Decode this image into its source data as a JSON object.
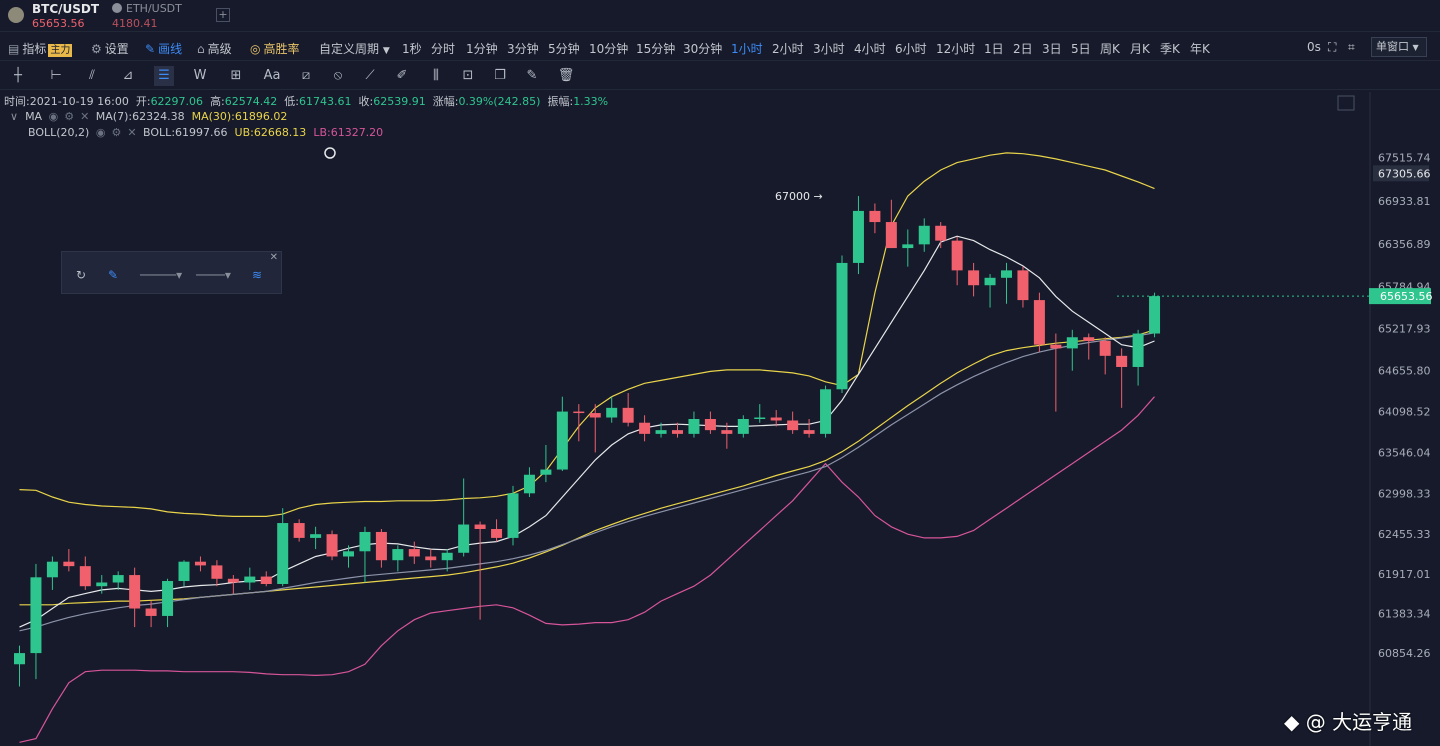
{
  "tabs": [
    {
      "symbol": "BTC/USDT",
      "price": "65653.56"
    },
    {
      "symbol": "ETH/USDT",
      "price": "4180.41"
    }
  ],
  "toolbar": {
    "indicator": "指标",
    "indicator_badge": "主力",
    "settings": "设置",
    "draw": "画线",
    "advanced": "高级",
    "high_win": "高胜率",
    "custom_period": "自定义周期",
    "periods": [
      "1秒",
      "分时",
      "1分钟",
      "3分钟",
      "5分钟",
      "10分钟",
      "15分钟",
      "30分钟",
      "1小时",
      "2小时",
      "3小时",
      "4小时",
      "6小时",
      "12小时",
      "1日",
      "2日",
      "3日",
      "5日",
      "周K",
      "月K",
      "季K",
      "年K"
    ],
    "active_period": "1小时",
    "timer": "0s",
    "window_mode": "单窗口"
  },
  "info": {
    "time_label": "时间:",
    "time": "2021-10-19 16:00",
    "open_label": "开:",
    "open": "62297.06",
    "high_label": "高:",
    "high": "62574.42",
    "low_label": "低:",
    "low": "61743.61",
    "close_label": "收:",
    "close": "62539.91",
    "change_label": "涨幅:",
    "change": "0.39%(242.85)",
    "amp_label": "振幅:",
    "amp": "1.33%"
  },
  "indicators": {
    "ma_name": "MA",
    "ma7": "MA(7):62324.38",
    "ma30": "MA(30):61896.02",
    "boll_name": "BOLL(20,2)",
    "boll": "BOLL:61997.66",
    "ub": "UB:62668.13",
    "lb": "LB:61327.20"
  },
  "colors": {
    "up": "#2fc58e",
    "down": "#f0616d",
    "ma7": "#e6e8ea",
    "ma30": "#8d93a8",
    "ub": "#e9d44a",
    "mid": "#e9d44a",
    "lb": "#d7559a",
    "bg": "#161a2b"
  },
  "watermark": "@ 大运亨通",
  "chart_data": {
    "type": "candlestick",
    "y_ticks": [
      "67515.74",
      "66933.81",
      "66356.89",
      "65784.94",
      "65217.93",
      "64655.80",
      "64098.52",
      "63546.04",
      "62998.33",
      "62455.33",
      "61917.01",
      "61383.34",
      "60854.26"
    ],
    "last_price": "65653.56",
    "marker_price": "67305.66",
    "annotation": "67000",
    "candles": [
      {
        "o": 60700,
        "h": 60950,
        "l": 60400,
        "c": 60850
      },
      {
        "o": 60850,
        "h": 62050,
        "l": 60500,
        "c": 61870
      },
      {
        "o": 61870,
        "h": 62150,
        "l": 61700,
        "c": 62080
      },
      {
        "o": 62080,
        "h": 62250,
        "l": 61950,
        "c": 62020
      },
      {
        "o": 62020,
        "h": 62150,
        "l": 61700,
        "c": 61750
      },
      {
        "o": 61750,
        "h": 61900,
        "l": 61650,
        "c": 61800
      },
      {
        "o": 61800,
        "h": 61950,
        "l": 61700,
        "c": 61900
      },
      {
        "o": 61900,
        "h": 62000,
        "l": 61200,
        "c": 61450
      },
      {
        "o": 61450,
        "h": 61550,
        "l": 61200,
        "c": 61350
      },
      {
        "o": 61350,
        "h": 61850,
        "l": 61200,
        "c": 61820
      },
      {
        "o": 61820,
        "h": 62100,
        "l": 61750,
        "c": 62080
      },
      {
        "o": 62080,
        "h": 62150,
        "l": 61950,
        "c": 62030
      },
      {
        "o": 62030,
        "h": 62100,
        "l": 61750,
        "c": 61850
      },
      {
        "o": 61850,
        "h": 61900,
        "l": 61650,
        "c": 61800
      },
      {
        "o": 61800,
        "h": 62000,
        "l": 61700,
        "c": 61880
      },
      {
        "o": 61880,
        "h": 61950,
        "l": 61750,
        "c": 61780
      },
      {
        "o": 61780,
        "h": 62800,
        "l": 61750,
        "c": 62600
      },
      {
        "o": 62600,
        "h": 62650,
        "l": 62350,
        "c": 62400
      },
      {
        "o": 62400,
        "h": 62550,
        "l": 62250,
        "c": 62450
      },
      {
        "o": 62450,
        "h": 62500,
        "l": 62100,
        "c": 62150
      },
      {
        "o": 62150,
        "h": 62300,
        "l": 62000,
        "c": 62220
      },
      {
        "o": 62220,
        "h": 62550,
        "l": 61800,
        "c": 62480
      },
      {
        "o": 62480,
        "h": 62520,
        "l": 62000,
        "c": 62100
      },
      {
        "o": 62100,
        "h": 62300,
        "l": 61950,
        "c": 62250
      },
      {
        "o": 62250,
        "h": 62350,
        "l": 62050,
        "c": 62150
      },
      {
        "o": 62150,
        "h": 62250,
        "l": 62000,
        "c": 62100
      },
      {
        "o": 62100,
        "h": 62250,
        "l": 61950,
        "c": 62200
      },
      {
        "o": 62200,
        "h": 63200,
        "l": 62150,
        "c": 62580
      },
      {
        "o": 62580,
        "h": 62620,
        "l": 61300,
        "c": 62520
      },
      {
        "o": 62520,
        "h": 62650,
        "l": 62350,
        "c": 62400
      },
      {
        "o": 62400,
        "h": 63100,
        "l": 62300,
        "c": 63000
      },
      {
        "o": 63000,
        "h": 63350,
        "l": 62950,
        "c": 63250
      },
      {
        "o": 63250,
        "h": 63650,
        "l": 63150,
        "c": 63320
      },
      {
        "o": 63320,
        "h": 64300,
        "l": 63300,
        "c": 64100
      },
      {
        "o": 64100,
        "h": 64200,
        "l": 63700,
        "c": 64080
      },
      {
        "o": 64080,
        "h": 64200,
        "l": 63550,
        "c": 64020
      },
      {
        "o": 64020,
        "h": 64300,
        "l": 63950,
        "c": 64150
      },
      {
        "o": 64150,
        "h": 64350,
        "l": 63900,
        "c": 63950
      },
      {
        "o": 63950,
        "h": 64050,
        "l": 63700,
        "c": 63800
      },
      {
        "o": 63800,
        "h": 63950,
        "l": 63750,
        "c": 63850
      },
      {
        "o": 63850,
        "h": 63950,
        "l": 63750,
        "c": 63800
      },
      {
        "o": 63800,
        "h": 64100,
        "l": 63750,
        "c": 64000
      },
      {
        "o": 64000,
        "h": 64100,
        "l": 63800,
        "c": 63850
      },
      {
        "o": 63850,
        "h": 63950,
        "l": 63600,
        "c": 63800
      },
      {
        "o": 63800,
        "h": 64050,
        "l": 63750,
        "c": 64000
      },
      {
        "o": 64000,
        "h": 64200,
        "l": 63950,
        "c": 64020
      },
      {
        "o": 64020,
        "h": 64120,
        "l": 63900,
        "c": 63980
      },
      {
        "o": 63980,
        "h": 64100,
        "l": 63800,
        "c": 63850
      },
      {
        "o": 63850,
        "h": 64000,
        "l": 63750,
        "c": 63800
      },
      {
        "o": 63800,
        "h": 64450,
        "l": 63750,
        "c": 64400
      },
      {
        "o": 64400,
        "h": 66200,
        "l": 64350,
        "c": 66100
      },
      {
        "o": 66100,
        "h": 67000,
        "l": 65950,
        "c": 66800
      },
      {
        "o": 66800,
        "h": 66900,
        "l": 66500,
        "c": 66650
      },
      {
        "o": 66650,
        "h": 66950,
        "l": 66300,
        "c": 66300
      },
      {
        "o": 66300,
        "h": 66550,
        "l": 66050,
        "c": 66350
      },
      {
        "o": 66350,
        "h": 66700,
        "l": 66250,
        "c": 66600
      },
      {
        "o": 66600,
        "h": 66650,
        "l": 66300,
        "c": 66400
      },
      {
        "o": 66400,
        "h": 66450,
        "l": 65800,
        "c": 66000
      },
      {
        "o": 66000,
        "h": 66100,
        "l": 65650,
        "c": 65800
      },
      {
        "o": 65800,
        "h": 65950,
        "l": 65500,
        "c": 65900
      },
      {
        "o": 65900,
        "h": 66100,
        "l": 65550,
        "c": 66000
      },
      {
        "o": 66000,
        "h": 66050,
        "l": 65500,
        "c": 65600
      },
      {
        "o": 65600,
        "h": 65700,
        "l": 64900,
        "c": 65000
      },
      {
        "o": 65000,
        "h": 65150,
        "l": 64100,
        "c": 64950
      },
      {
        "o": 64950,
        "h": 65200,
        "l": 64650,
        "c": 65100
      },
      {
        "o": 65100,
        "h": 65150,
        "l": 64800,
        "c": 65050
      },
      {
        "o": 65050,
        "h": 65100,
        "l": 64600,
        "c": 64850
      },
      {
        "o": 64850,
        "h": 64950,
        "l": 64150,
        "c": 64700
      },
      {
        "o": 64700,
        "h": 65200,
        "l": 64450,
        "c": 65150
      },
      {
        "o": 65150,
        "h": 65700,
        "l": 65100,
        "c": 65653.56
      }
    ],
    "ma7": [
      61200,
      61300,
      61450,
      61600,
      61650,
      61700,
      61720,
      61700,
      61680,
      61700,
      61740,
      61760,
      61770,
      61800,
      61820,
      61830,
      61950,
      62050,
      62150,
      62200,
      62260,
      62310,
      62330,
      62320,
      62280,
      62250,
      62240,
      62300,
      62330,
      62350,
      62420,
      62550,
      62700,
      62950,
      63200,
      63450,
      63650,
      63800,
      63880,
      63920,
      63930,
      63920,
      63910,
      63900,
      63900,
      63910,
      63920,
      63930,
      63930,
      63980,
      64250,
      64600,
      64950,
      65300,
      65650,
      66000,
      66380,
      66460,
      66400,
      66280,
      66180,
      66060,
      65900,
      65650,
      65450,
      65300,
      65150,
      65000,
      64960,
      65050
    ],
    "ma30": [
      61150,
      61200,
      61270,
      61330,
      61380,
      61420,
      61460,
      61490,
      61510,
      61540,
      61570,
      61600,
      61620,
      61640,
      61660,
      61680,
      61720,
      61760,
      61800,
      61830,
      61860,
      61890,
      61910,
      61930,
      61950,
      61970,
      61990,
      62020,
      62050,
      62080,
      62120,
      62170,
      62230,
      62310,
      62390,
      62470,
      62550,
      62620,
      62690,
      62750,
      62810,
      62870,
      62930,
      62990,
      63050,
      63110,
      63170,
      63230,
      63290,
      63360,
      63480,
      63620,
      63770,
      63920,
      64060,
      64200,
      64340,
      64460,
      64570,
      64670,
      64760,
      64840,
      64900,
      64950,
      64990,
      65030,
      65060,
      65090,
      65120,
      65160
    ],
    "boll_ub": [
      63050,
      63040,
      62950,
      62880,
      62850,
      62830,
      62820,
      62810,
      62790,
      62750,
      62730,
      62720,
      62700,
      62690,
      62690,
      62690,
      62720,
      62800,
      62850,
      62870,
      62880,
      62890,
      62890,
      62900,
      62900,
      62900,
      62910,
      62930,
      62940,
      62960,
      63000,
      63100,
      63300,
      63600,
      63900,
      64150,
      64300,
      64400,
      64480,
      64520,
      64560,
      64600,
      64640,
      64660,
      64660,
      64660,
      64640,
      64620,
      64580,
      64500,
      64450,
      64600,
      65700,
      66600,
      67000,
      67200,
      67350,
      67450,
      67500,
      67550,
      67580,
      67570,
      67540,
      67500,
      67450,
      67400,
      67350,
      67270,
      67190,
      67100
    ],
    "boll_mid": [
      61500,
      61500,
      61500,
      61520,
      61530,
      61540,
      61550,
      61550,
      61560,
      61570,
      61580,
      61600,
      61620,
      61640,
      61660,
      61680,
      61700,
      61720,
      61740,
      61760,
      61780,
      61800,
      61820,
      61840,
      61860,
      61880,
      61900,
      61930,
      61970,
      62010,
      62060,
      62130,
      62210,
      62300,
      62400,
      62500,
      62580,
      62660,
      62730,
      62800,
      62860,
      62920,
      62980,
      63040,
      63100,
      63170,
      63240,
      63300,
      63360,
      63440,
      63560,
      63700,
      63860,
      64020,
      64180,
      64330,
      64480,
      64620,
      64740,
      64850,
      64920,
      64960,
      64990,
      65020,
      65040,
      65060,
      65080,
      65100,
      65130,
      65200
    ],
    "boll_lb": [
      59650,
      59700,
      60100,
      60450,
      60600,
      60620,
      60620,
      60620,
      60610,
      60610,
      60600,
      60600,
      60600,
      60600,
      60590,
      60570,
      60560,
      60560,
      60550,
      60560,
      60600,
      60700,
      60950,
      61150,
      61300,
      61390,
      61420,
      61450,
      61480,
      61500,
      61460,
      61360,
      61250,
      61230,
      61240,
      61260,
      61260,
      61300,
      61400,
      61550,
      61650,
      61750,
      61900,
      62100,
      62300,
      62500,
      62700,
      62900,
      63150,
      63400,
      63150,
      62950,
      62700,
      62550,
      62450,
      62400,
      62400,
      62420,
      62500,
      62650,
      62800,
      62950,
      63100,
      63250,
      63400,
      63550,
      63700,
      63850,
      64050,
      64300
    ]
  }
}
